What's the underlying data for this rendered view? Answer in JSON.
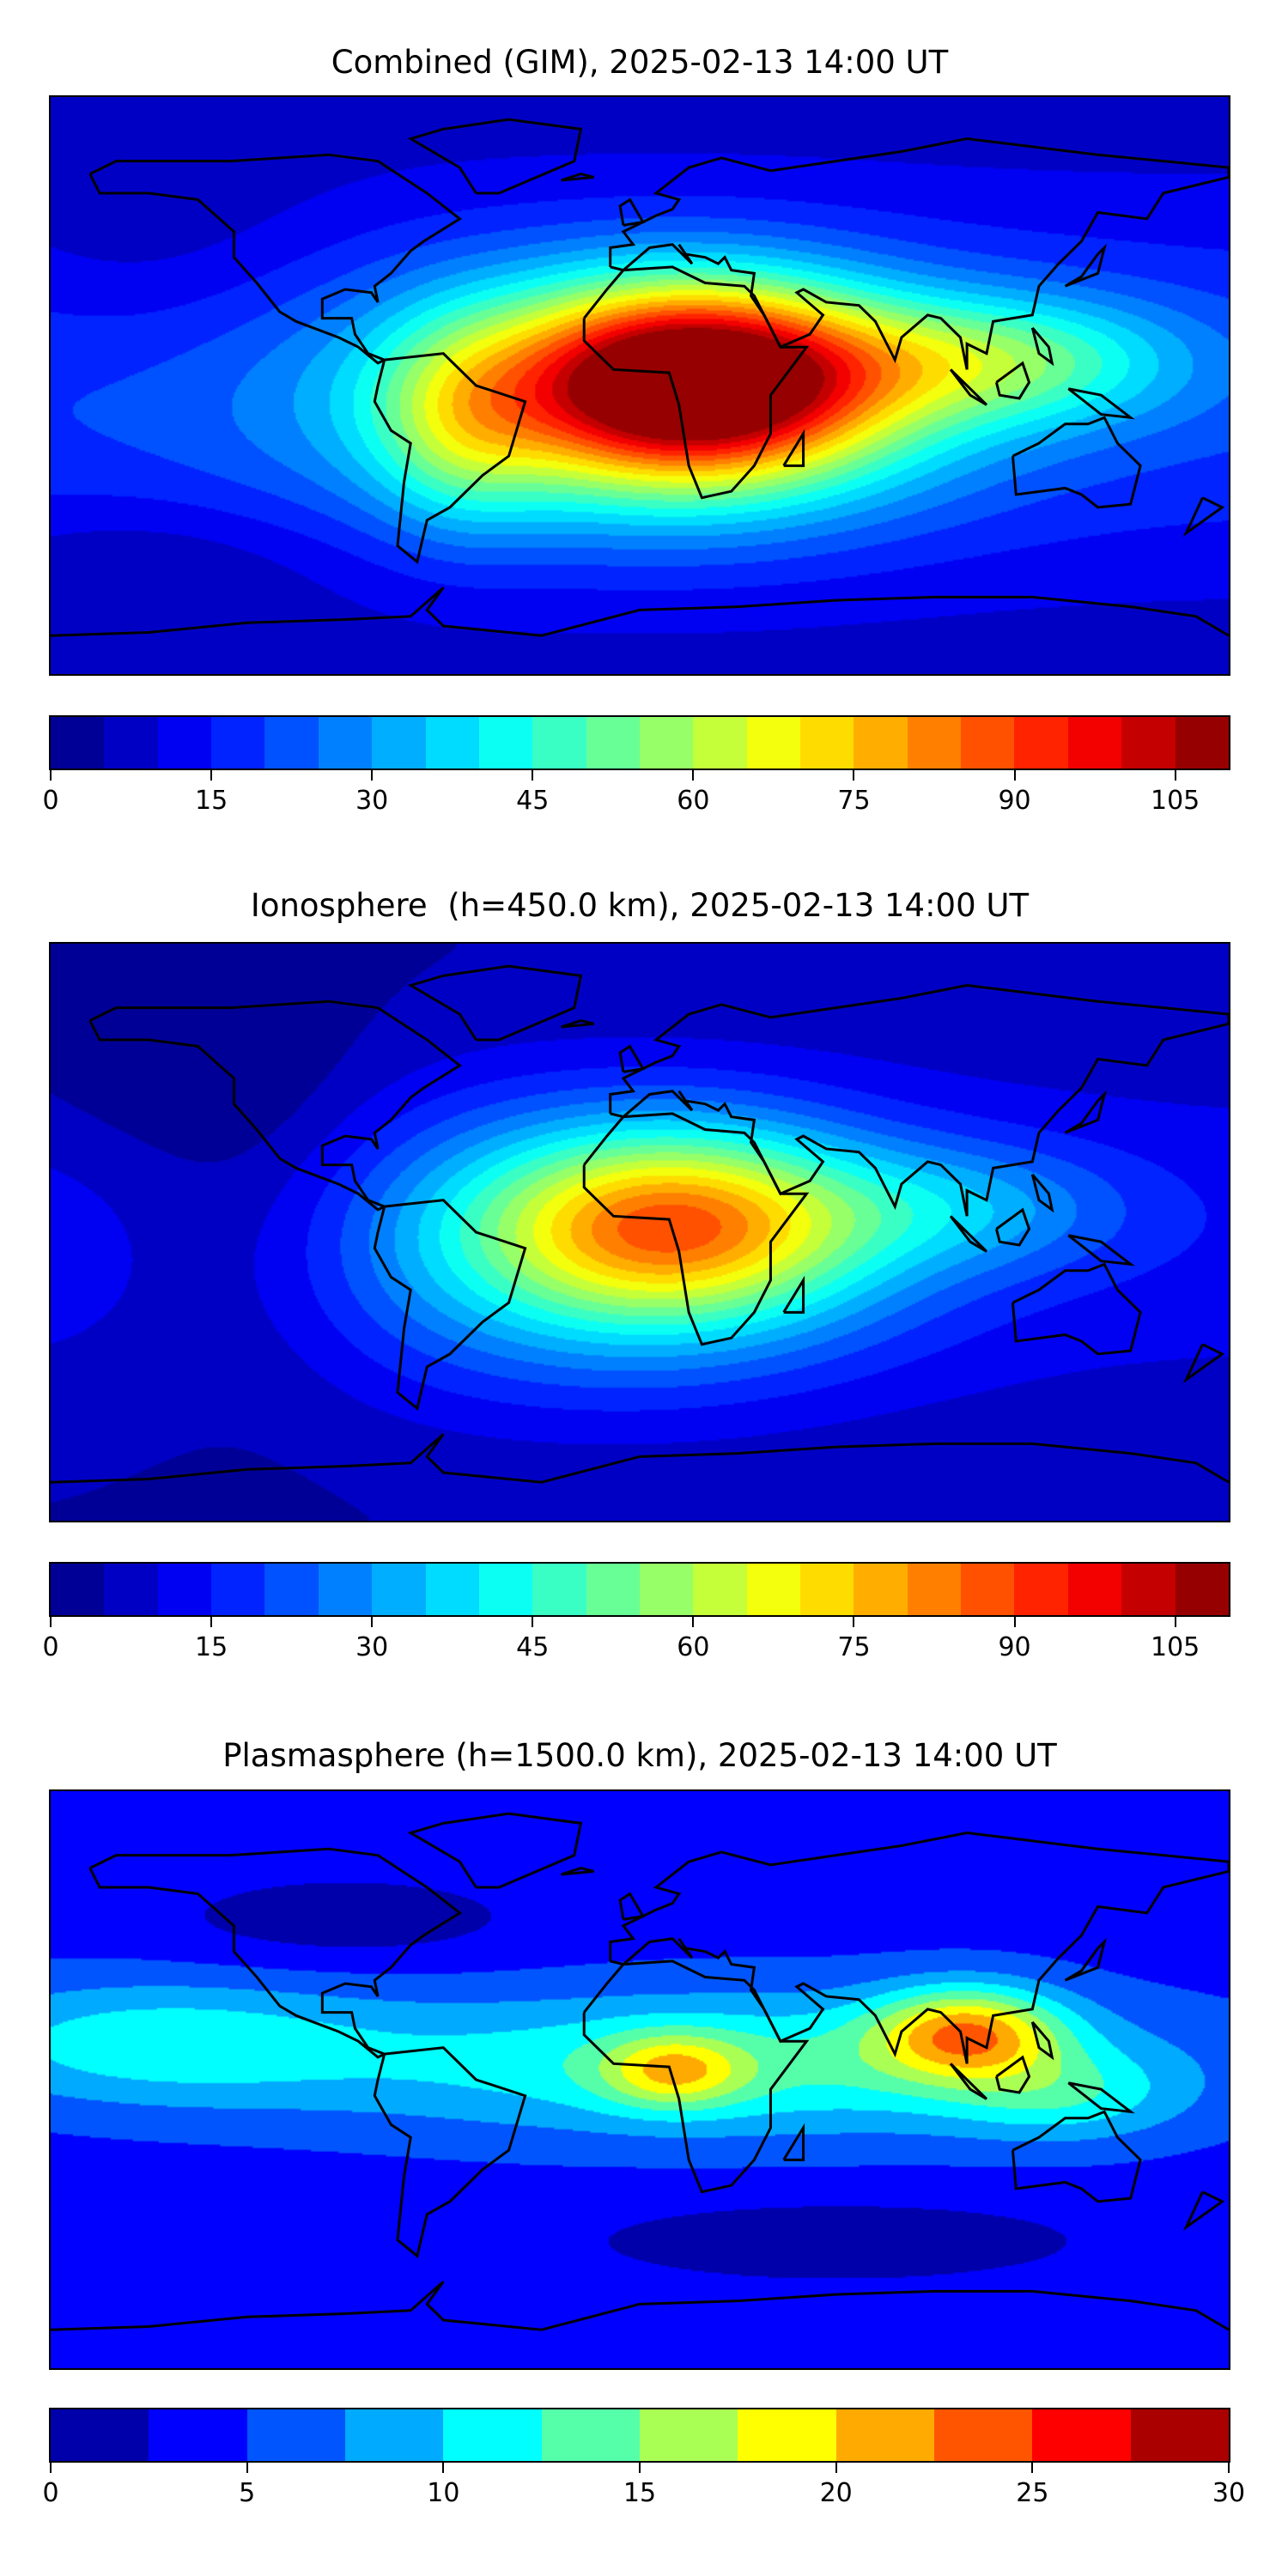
{
  "panels": [
    {
      "title": "Combined (GIM), 2025-02-13 14:00 UT",
      "colorbar": {
        "min": 0,
        "max": 110,
        "step": 5,
        "ticks": [
          "0",
          "15",
          "30",
          "45",
          "60",
          "75",
          "90",
          "105"
        ]
      }
    },
    {
      "title": "Ionosphere  (h=450.0 km), 2025-02-13 14:00 UT",
      "colorbar": {
        "min": 0,
        "max": 110,
        "step": 5,
        "ticks": [
          "0",
          "15",
          "30",
          "45",
          "60",
          "75",
          "90",
          "105"
        ]
      }
    },
    {
      "title": "Plasmasphere (h=1500.0 km), 2025-02-13 14:00 UT",
      "colorbar": {
        "min": 0,
        "max": 30,
        "step": 2.5,
        "ticks": [
          "0",
          "5",
          "10",
          "15",
          "20",
          "25",
          "30"
        ]
      }
    }
  ],
  "chart_data": [
    {
      "type": "heatmap",
      "title": "Combined (GIM), 2025-02-13 14:00 UT",
      "colormap": "jet",
      "levels": [
        0,
        110
      ],
      "level_step": 5,
      "xlim": [
        -180,
        180
      ],
      "ylim": [
        -90,
        90
      ],
      "max_region": "central Africa ~105",
      "min_region": "high latitudes ~5-15"
    },
    {
      "type": "heatmap",
      "title": "Ionosphere  (h=450.0 km), 2025-02-13 14:00 UT",
      "colormap": "jet",
      "levels": [
        0,
        110
      ],
      "level_step": 5,
      "xlim": [
        -180,
        180
      ],
      "ylim": [
        -90,
        90
      ],
      "max_region": "central Africa ~75",
      "min_region": "eastern Pacific ~0-5"
    },
    {
      "type": "heatmap",
      "title": "Plasmasphere (h=1500.0 km), 2025-02-13 14:00 UT",
      "colormap": "jet",
      "levels": [
        0,
        30
      ],
      "level_step": 2.5,
      "xlim": [
        -180,
        180
      ],
      "ylim": [
        -90,
        90
      ],
      "max_region": "Southeast Asia ~22.5-25",
      "min_region": "mid latitudes ~0-2.5"
    }
  ]
}
